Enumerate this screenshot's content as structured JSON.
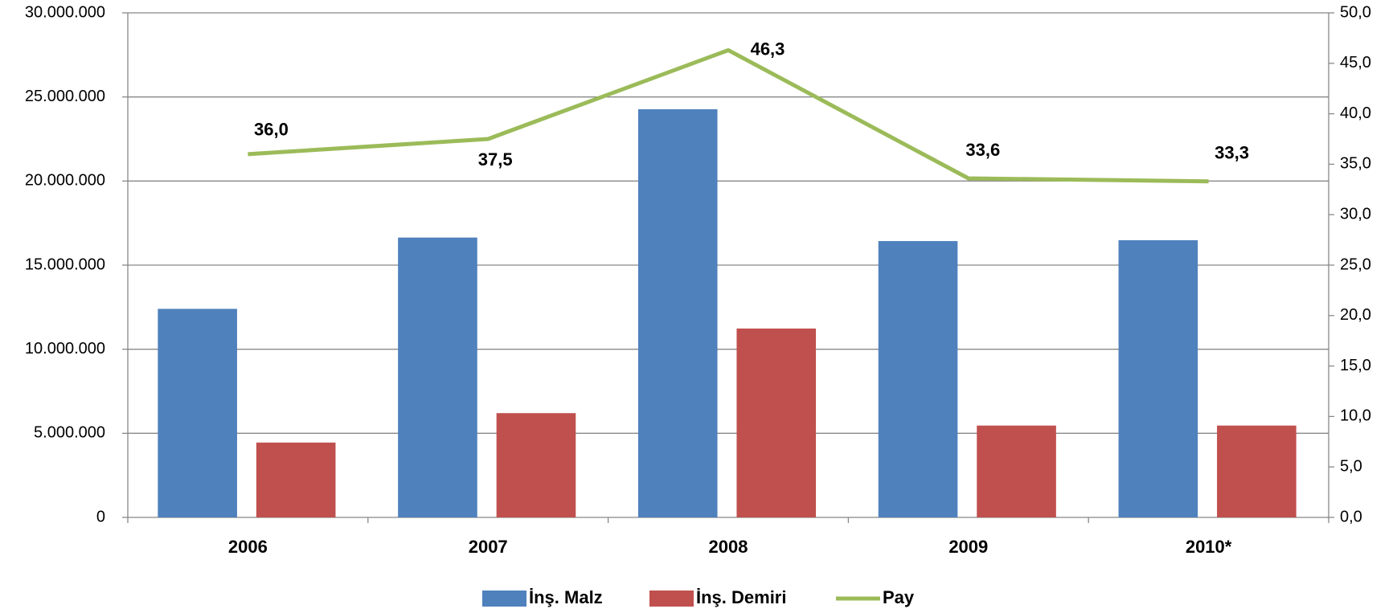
{
  "chart_data": {
    "type": "bar_line",
    "categories": [
      "2006",
      "2007",
      "2008",
      "2009",
      "2010*"
    ],
    "series": [
      {
        "name": "İnş. Malz",
        "color": "#4f81bd",
        "values": [
          12400000,
          16640000,
          24270000,
          16430000,
          16480000
        ]
      },
      {
        "name": "İnş. Demiri",
        "color": "#c0504d",
        "values": [
          4450000,
          6200000,
          11230000,
          5460000,
          5460000
        ]
      },
      {
        "name": "Pay",
        "color": "#9bbb59",
        "axis": "y2",
        "type": "line",
        "values": [
          36.0,
          37.5,
          46.3,
          33.6,
          33.3
        ],
        "value_labels": [
          "36,0",
          "37,5",
          "46,3",
          "33,6",
          "33,3"
        ]
      }
    ],
    "ylim": [
      0,
      30000000
    ],
    "yticks": [
      0,
      {
        "value": 5000000,
        "label": "5.000.000"
      },
      {
        "value": 10000000,
        "label": "10.000.000"
      },
      {
        "value": 15000000,
        "label": "15.000.000"
      },
      {
        "value": 20000000,
        "label": "20.000.000"
      },
      {
        "value": 25000000,
        "label": "25.000.000"
      },
      {
        "value": 30000000,
        "label": "30.000.000"
      }
    ],
    "y2lim": [
      0,
      50
    ],
    "y2ticks": [
      {
        "value": 0,
        "label": "0,0"
      },
      {
        "value": 5,
        "label": "5,0"
      },
      {
        "value": 10,
        "label": "10,0"
      },
      {
        "value": 15,
        "label": "15,0"
      },
      {
        "value": 20,
        "label": "20,0"
      },
      {
        "value": 25,
        "label": "25,0"
      },
      {
        "value": 30,
        "label": "30,0"
      },
      {
        "value": 35,
        "label": "35,0"
      },
      {
        "value": 40,
        "label": "40,0"
      },
      {
        "value": 45,
        "label": "45,0"
      },
      {
        "value": 50,
        "label": "50,0"
      }
    ],
    "grid": true,
    "legend": "bottom"
  }
}
